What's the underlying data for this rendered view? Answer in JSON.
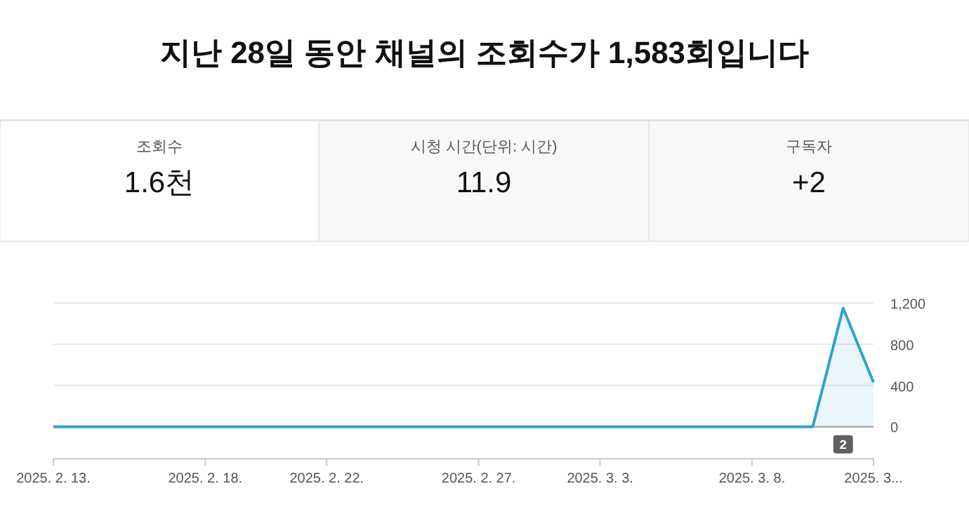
{
  "chart_data": [
    {
      "type": "other",
      "title": "지난 28일 동안 채널의 조회수가 1,583회입니다",
      "annotations": [
        "조회수",
        "1.6천",
        "시청 시간(단위: 시간)",
        "11.9",
        "구독자",
        "+2"
      ]
    },
    {
      "type": "area",
      "x": [
        "2025-02-13",
        "2025-02-14",
        "2025-02-15",
        "2025-02-16",
        "2025-02-17",
        "2025-02-18",
        "2025-02-19",
        "2025-02-20",
        "2025-02-21",
        "2025-02-22",
        "2025-02-23",
        "2025-02-24",
        "2025-02-25",
        "2025-02-26",
        "2025-02-27",
        "2025-02-28",
        "2025-03-01",
        "2025-03-02",
        "2025-03-03",
        "2025-03-04",
        "2025-03-05",
        "2025-03-06",
        "2025-03-07",
        "2025-03-08",
        "2025-03-09",
        "2025-03-10",
        "2025-03-11",
        "2025-03-12"
      ],
      "series": [
        {
          "color": "#2ea3cc",
          "values": [
            0,
            0,
            0,
            0,
            0,
            0,
            0,
            0,
            0,
            0,
            0,
            0,
            0,
            0,
            0,
            0,
            0,
            0,
            0,
            0,
            0,
            0,
            0,
            0,
            0,
            0,
            1150,
            430
          ]
        }
      ],
      "xlim": [
        "2025-02-13",
        "2025-03-12"
      ],
      "xticks": [
        {
          "value": "2025-02-13",
          "label": "2025. 2. 13."
        },
        {
          "value": "2025-02-18",
          "label": "2025. 2. 18."
        },
        {
          "value": "2025-02-22",
          "label": "2025. 2. 22."
        },
        {
          "value": "2025-02-27",
          "label": "2025. 2. 27."
        },
        {
          "value": "2025-03-03",
          "label": "2025. 3. 3."
        },
        {
          "value": "2025-03-08",
          "label": "2025. 3. 8."
        },
        {
          "value": "2025-03-12",
          "label": "2025. 3..."
        }
      ],
      "ylim": [
        -310,
        1200
      ],
      "yticks": [
        0,
        400,
        800,
        {
          "value": 1200,
          "label": "1,200"
        }
      ],
      "grid": "y",
      "annotations": [
        {
          "text": "2",
          "x": "2025-03-11"
        }
      ]
    }
  ]
}
